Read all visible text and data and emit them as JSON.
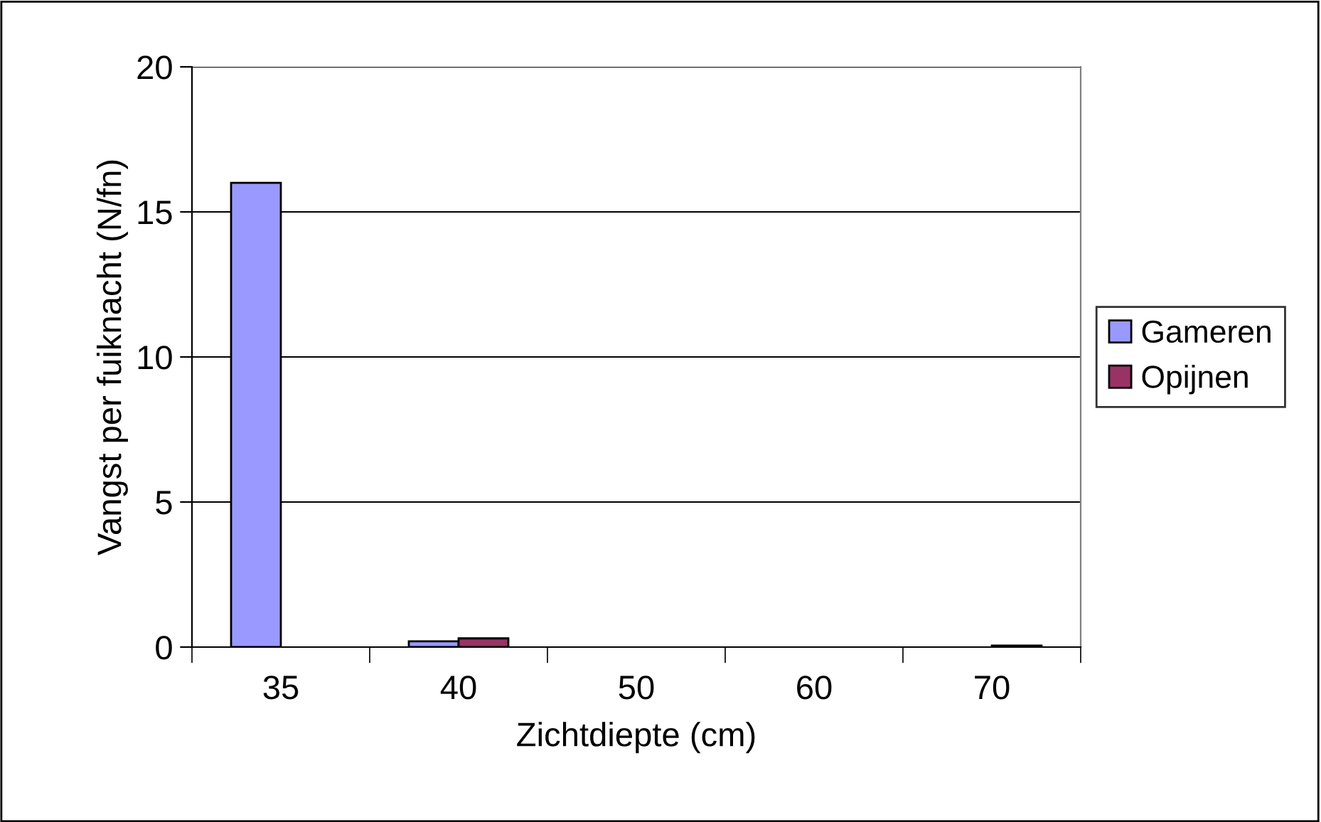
{
  "chart_data": {
    "type": "bar",
    "xlabel": "Zichtdiepte (cm)",
    "ylabel": "Vangst per fuiknacht (N/fn)",
    "categories": [
      "35",
      "40",
      "50",
      "60",
      "70"
    ],
    "series": [
      {
        "name": "Gameren",
        "color": "#9999ff",
        "values": [
          16,
          0.2,
          0,
          0,
          0
        ]
      },
      {
        "name": "Opijnen",
        "color": "#993366",
        "values": [
          0,
          0.3,
          0,
          0,
          0.05
        ]
      }
    ],
    "ylim": [
      0,
      20
    ],
    "yticks": [
      0,
      5,
      10,
      15,
      20
    ],
    "grid": "y",
    "legend": "right"
  }
}
